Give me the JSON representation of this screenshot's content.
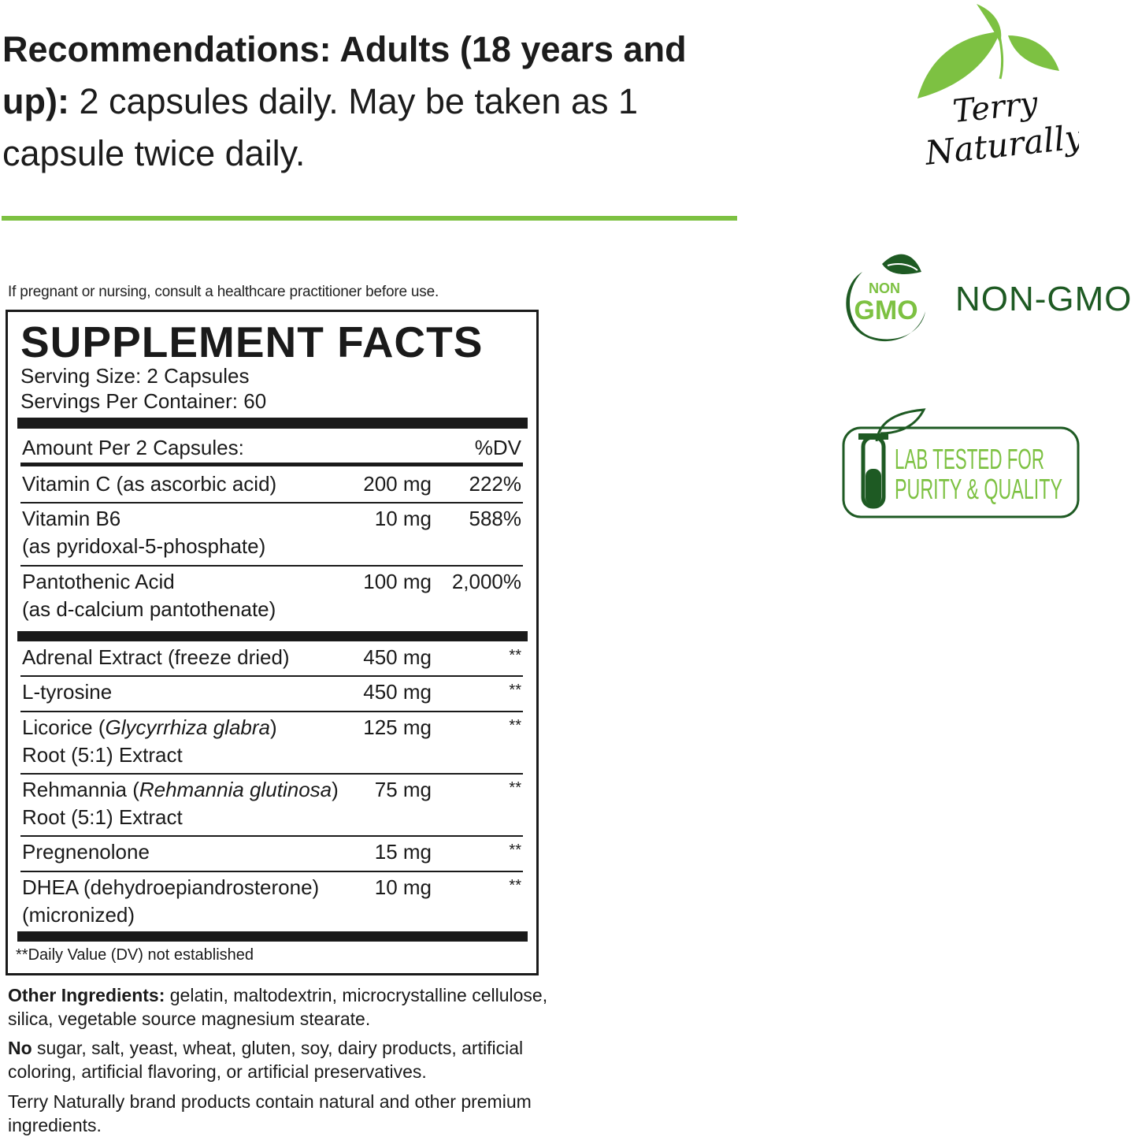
{
  "recommendations": {
    "bold1": "Recommendations: Adults (18 years and up):",
    "text1": " 2 capsules daily. May be taken as 1 capsule twice daily."
  },
  "warning": "If pregnant or nursing, consult a healthcare practitioner before use.",
  "facts": {
    "title": "SUPPLEMENT FACTS",
    "serving_size": "Serving Size: 2 Capsules",
    "servings_per_container": "Servings Per Container: 60",
    "amount_header": "Amount Per 2 Capsules:",
    "dv_header": "%DV",
    "rows": [
      {
        "name": "Vitamin C (as ascorbic acid)",
        "name2": "",
        "amount": "200 mg",
        "dv": "222%"
      },
      {
        "name": "Vitamin B6",
        "name2": "(as pyridoxal-5-phosphate)",
        "amount": "10 mg",
        "dv": "588%"
      },
      {
        "name": "Pantothenic Acid",
        "name2": "(as d-calcium pantothenate)",
        "amount": "100 mg",
        "dv": "2,000%"
      },
      {
        "name": "Adrenal Extract (freeze dried)",
        "name2": "",
        "amount": "450 mg",
        "dv": "**"
      },
      {
        "name": "L-tyrosine",
        "name2": "",
        "amount": "450 mg",
        "dv": "**"
      },
      {
        "name": "Licorice (",
        "italic": "Glycyrrhiza glabra",
        "name_end": ")",
        "name2": "Root (5:1) Extract",
        "amount": "125 mg",
        "dv": "**"
      },
      {
        "name": "Rehmannia (",
        "italic": "Rehmannia glutinosa",
        "name_end": ")",
        "name2": "Root (5:1) Extract",
        "amount": "75 mg",
        "dv": "**"
      },
      {
        "name": "Pregnenolone",
        "name2": "",
        "amount": "15 mg",
        "dv": "**"
      },
      {
        "name": "DHEA (dehydroepiandrosterone)",
        "name2": "(micronized)",
        "amount": "10 mg",
        "dv": "**"
      }
    ],
    "footnote": "**Daily Value (DV) not established"
  },
  "other": {
    "label": "Other Ingredients:",
    "text": " gelatin, maltodextrin, microcrystalline cellulose, silica, vegetable source magnesium stearate.",
    "no_label": "No",
    "no_text": " sugar, salt, yeast, wheat, gluten, soy, dairy products, artificial coloring, artificial flavoring, or artificial preservatives.",
    "brand_text": "Terry Naturally brand products contain natural and other premium ingredients."
  },
  "brand": {
    "logo_line1": "Terry",
    "logo_line2": "Naturally",
    "leaf_color": "#7dc142"
  },
  "badges": {
    "gmo_small": "NON",
    "gmo_big": "GMO",
    "gmo_label": "NON-GMO",
    "lab_line1": "LAB TESTED FOR",
    "lab_line2": "PURITY & QUALITY",
    "dark_green": "#1e5a23",
    "light_green": "#7dc142"
  }
}
